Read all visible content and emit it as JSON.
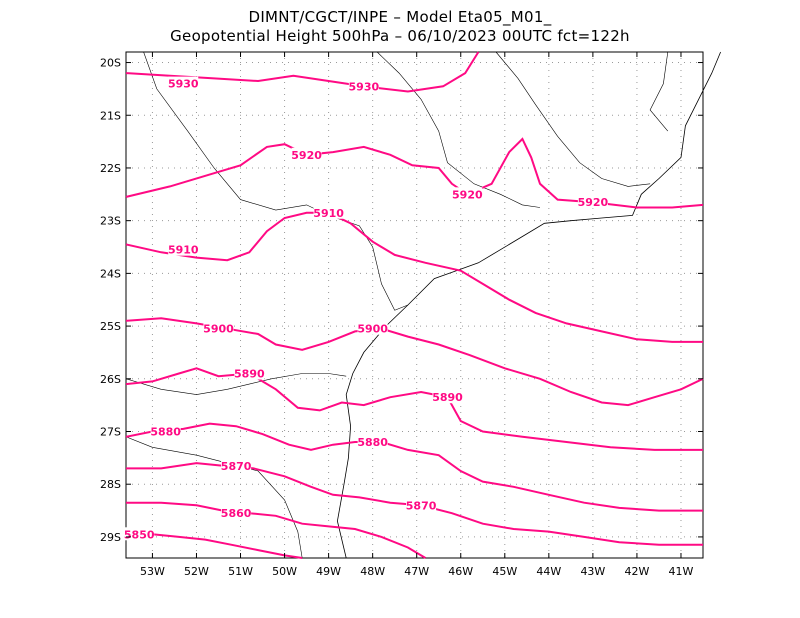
{
  "header": {
    "line1": "DIMNT/CGCT/INPE –  Model Eta05_M01_",
    "line2": "Geopotential Height 500hPa –  06/10/2023 00UTC fct=122h"
  },
  "map": {
    "lon_range": [
      -53.6,
      -40.5
    ],
    "lat_range": [
      -29.4,
      -19.8
    ],
    "lat_ticks": [
      {
        "value": -20,
        "label": "20S"
      },
      {
        "value": -21,
        "label": "21S"
      },
      {
        "value": -22,
        "label": "22S"
      },
      {
        "value": -23,
        "label": "23S"
      },
      {
        "value": -24,
        "label": "24S"
      },
      {
        "value": -25,
        "label": "25S"
      },
      {
        "value": -26,
        "label": "26S"
      },
      {
        "value": -27,
        "label": "27S"
      },
      {
        "value": -28,
        "label": "28S"
      },
      {
        "value": -29,
        "label": "29S"
      }
    ],
    "lon_ticks": [
      {
        "value": -53,
        "label": "53W"
      },
      {
        "value": -52,
        "label": "52W"
      },
      {
        "value": -51,
        "label": "51W"
      },
      {
        "value": -50,
        "label": "50W"
      },
      {
        "value": -49,
        "label": "49W"
      },
      {
        "value": -48,
        "label": "48W"
      },
      {
        "value": -47,
        "label": "47W"
      },
      {
        "value": -46,
        "label": "46W"
      },
      {
        "value": -45,
        "label": "45W"
      },
      {
        "value": -44,
        "label": "44W"
      },
      {
        "value": -43,
        "label": "43W"
      },
      {
        "value": -42,
        "label": "42W"
      },
      {
        "value": -41,
        "label": "41W"
      }
    ],
    "grid": true,
    "contour_color": "#ff0a84",
    "border_color": "#000000"
  },
  "contours": [
    {
      "value": "5930",
      "label_pos": [
        -52.3,
        -20.4
      ],
      "label2_pos": [
        -48.2,
        -20.45
      ],
      "points": [
        [
          -53.6,
          -20.2
        ],
        [
          -52.6,
          -20.25
        ],
        [
          -51.6,
          -20.3
        ],
        [
          -50.6,
          -20.35
        ],
        [
          -49.8,
          -20.25
        ],
        [
          -49.0,
          -20.35
        ],
        [
          -48.2,
          -20.45
        ],
        [
          -47.2,
          -20.55
        ],
        [
          -46.4,
          -20.45
        ],
        [
          -45.9,
          -20.2
        ],
        [
          -45.6,
          -19.8
        ]
      ]
    },
    {
      "value": "5920",
      "label_pos": [
        -49.5,
        -21.75
      ],
      "label2_pos": [
        -45.85,
        -22.5
      ],
      "label3_pos": [
        -43.0,
        -22.65
      ],
      "points": [
        [
          -53.6,
          -22.55
        ],
        [
          -52.6,
          -22.35
        ],
        [
          -51.6,
          -22.1
        ],
        [
          -51.0,
          -21.95
        ],
        [
          -50.4,
          -21.6
        ],
        [
          -50.0,
          -21.55
        ],
        [
          -49.5,
          -21.75
        ],
        [
          -48.9,
          -21.7
        ],
        [
          -48.2,
          -21.6
        ],
        [
          -47.6,
          -21.75
        ],
        [
          -47.1,
          -21.95
        ],
        [
          -46.5,
          -22.0
        ],
        [
          -46.2,
          -22.3
        ],
        [
          -45.85,
          -22.5
        ],
        [
          -45.3,
          -22.3
        ],
        [
          -44.9,
          -21.7
        ],
        [
          -44.6,
          -21.45
        ],
        [
          -44.4,
          -21.8
        ],
        [
          -44.2,
          -22.3
        ],
        [
          -43.8,
          -22.6
        ],
        [
          -43.0,
          -22.65
        ],
        [
          -42.0,
          -22.75
        ],
        [
          -41.2,
          -22.75
        ],
        [
          -40.5,
          -22.7
        ]
      ]
    },
    {
      "value": "5910",
      "label_pos": [
        -52.3,
        -23.55
      ],
      "label2_pos": [
        -49.0,
        -22.85
      ],
      "points": [
        [
          -53.6,
          -23.45
        ],
        [
          -52.8,
          -23.6
        ],
        [
          -52.0,
          -23.7
        ],
        [
          -51.3,
          -23.75
        ],
        [
          -50.8,
          -23.6
        ],
        [
          -50.4,
          -23.2
        ],
        [
          -50.0,
          -22.95
        ],
        [
          -49.5,
          -22.85
        ],
        [
          -49.0,
          -22.85
        ],
        [
          -48.5,
          -23.05
        ],
        [
          -48.0,
          -23.4
        ],
        [
          -47.5,
          -23.65
        ],
        [
          -46.8,
          -23.8
        ],
        [
          -46.0,
          -23.95
        ],
        [
          -45.5,
          -24.2
        ],
        [
          -44.9,
          -24.5
        ],
        [
          -44.3,
          -24.75
        ],
        [
          -43.6,
          -24.95
        ],
        [
          -42.8,
          -25.1
        ],
        [
          -42.0,
          -25.25
        ],
        [
          -41.2,
          -25.3
        ],
        [
          -40.5,
          -25.3
        ]
      ]
    },
    {
      "value": "5900",
      "label_pos": [
        -51.5,
        -25.05
      ],
      "label2_pos": [
        -48.0,
        -25.05
      ],
      "points": [
        [
          -53.6,
          -24.9
        ],
        [
          -52.8,
          -24.85
        ],
        [
          -52.0,
          -24.95
        ],
        [
          -51.3,
          -25.05
        ],
        [
          -50.6,
          -25.15
        ],
        [
          -50.2,
          -25.35
        ],
        [
          -49.6,
          -25.45
        ],
        [
          -49.0,
          -25.3
        ],
        [
          -48.4,
          -25.1
        ],
        [
          -47.8,
          -25.05
        ],
        [
          -47.2,
          -25.2
        ],
        [
          -46.5,
          -25.35
        ],
        [
          -45.8,
          -25.55
        ],
        [
          -45.0,
          -25.8
        ],
        [
          -44.2,
          -26.0
        ],
        [
          -43.5,
          -26.25
        ],
        [
          -42.8,
          -26.45
        ],
        [
          -42.2,
          -26.5
        ],
        [
          -41.6,
          -26.35
        ],
        [
          -41.0,
          -26.2
        ],
        [
          -40.5,
          -26.0
        ]
      ]
    },
    {
      "value": "5890",
      "label_pos": [
        -50.8,
        -25.9
      ],
      "label2_pos": [
        -46.3,
        -26.35
      ],
      "points": [
        [
          -53.6,
          -26.1
        ],
        [
          -53.0,
          -26.05
        ],
        [
          -52.4,
          -25.9
        ],
        [
          -52.0,
          -25.8
        ],
        [
          -51.5,
          -25.95
        ],
        [
          -50.8,
          -25.9
        ],
        [
          -50.2,
          -26.2
        ],
        [
          -49.7,
          -26.55
        ],
        [
          -49.2,
          -26.6
        ],
        [
          -48.7,
          -26.45
        ],
        [
          -48.2,
          -26.5
        ],
        [
          -47.6,
          -26.35
        ],
        [
          -46.9,
          -26.25
        ],
        [
          -46.3,
          -26.35
        ],
        [
          -46.0,
          -26.8
        ],
        [
          -45.5,
          -27.0
        ],
        [
          -44.6,
          -27.1
        ],
        [
          -43.6,
          -27.2
        ],
        [
          -42.6,
          -27.3
        ],
        [
          -41.6,
          -27.35
        ],
        [
          -40.5,
          -27.35
        ]
      ]
    },
    {
      "value": "5880",
      "label_pos": [
        -52.7,
        -27.0
      ],
      "label2_pos": [
        -48.0,
        -27.2
      ],
      "points": [
        [
          -53.6,
          -27.1
        ],
        [
          -53.0,
          -27.0
        ],
        [
          -52.3,
          -26.95
        ],
        [
          -51.7,
          -26.85
        ],
        [
          -51.1,
          -26.9
        ],
        [
          -50.5,
          -27.05
        ],
        [
          -49.9,
          -27.25
        ],
        [
          -49.4,
          -27.35
        ],
        [
          -48.9,
          -27.25
        ],
        [
          -48.4,
          -27.2
        ],
        [
          -47.8,
          -27.2
        ],
        [
          -47.2,
          -27.35
        ],
        [
          -46.5,
          -27.45
        ],
        [
          -46.0,
          -27.75
        ],
        [
          -45.5,
          -27.95
        ],
        [
          -44.8,
          -28.05
        ],
        [
          -44.0,
          -28.2
        ],
        [
          -43.2,
          -28.35
        ],
        [
          -42.4,
          -28.45
        ],
        [
          -41.5,
          -28.5
        ],
        [
          -40.5,
          -28.5
        ]
      ]
    },
    {
      "value": "5870",
      "label_pos": [
        -51.1,
        -27.65
      ],
      "label2_pos": [
        -46.9,
        -28.4
      ],
      "points": [
        [
          -53.6,
          -27.7
        ],
        [
          -52.8,
          -27.7
        ],
        [
          -52.0,
          -27.6
        ],
        [
          -51.4,
          -27.65
        ],
        [
          -50.7,
          -27.7
        ],
        [
          -50.0,
          -27.85
        ],
        [
          -49.4,
          -28.05
        ],
        [
          -48.9,
          -28.2
        ],
        [
          -48.3,
          -28.25
        ],
        [
          -47.6,
          -28.35
        ],
        [
          -46.9,
          -28.4
        ],
        [
          -46.2,
          -28.55
        ],
        [
          -45.5,
          -28.75
        ],
        [
          -44.8,
          -28.85
        ],
        [
          -44.0,
          -28.9
        ],
        [
          -43.2,
          -29.0
        ],
        [
          -42.4,
          -29.1
        ],
        [
          -41.5,
          -29.15
        ],
        [
          -40.5,
          -29.15
        ]
      ]
    },
    {
      "value": "5860",
      "label_pos": [
        -51.1,
        -28.55
      ],
      "points": [
        [
          -53.6,
          -28.35
        ],
        [
          -52.8,
          -28.35
        ],
        [
          -52.0,
          -28.4
        ],
        [
          -51.4,
          -28.5
        ],
        [
          -50.8,
          -28.55
        ],
        [
          -50.2,
          -28.6
        ],
        [
          -49.6,
          -28.75
        ],
        [
          -49.0,
          -28.8
        ],
        [
          -48.4,
          -28.85
        ],
        [
          -47.8,
          -29.0
        ],
        [
          -47.2,
          -29.2
        ],
        [
          -46.8,
          -29.4
        ]
      ]
    },
    {
      "value": "5850",
      "label_pos": [
        -53.3,
        -28.95
      ],
      "points": [
        [
          -53.6,
          -28.95
        ],
        [
          -53.0,
          -28.95
        ],
        [
          -52.4,
          -29.0
        ],
        [
          -51.8,
          -29.05
        ],
        [
          -51.2,
          -29.15
        ],
        [
          -50.6,
          -29.25
        ],
        [
          -50.0,
          -29.35
        ],
        [
          -49.6,
          -29.4
        ]
      ]
    }
  ],
  "coastline": [
    [
      -48.6,
      -29.4
    ],
    [
      -48.8,
      -28.7
    ],
    [
      -48.65,
      -28.0
    ],
    [
      -48.55,
      -27.5
    ],
    [
      -48.5,
      -26.9
    ],
    [
      -48.6,
      -26.3
    ],
    [
      -48.45,
      -25.9
    ],
    [
      -48.2,
      -25.5
    ],
    [
      -47.7,
      -25.0
    ],
    [
      -47.2,
      -24.6
    ],
    [
      -46.6,
      -24.1
    ],
    [
      -46.1,
      -23.95
    ],
    [
      -45.6,
      -23.8
    ],
    [
      -45.1,
      -23.55
    ],
    [
      -44.6,
      -23.3
    ],
    [
      -44.1,
      -23.05
    ],
    [
      -43.5,
      -23.0
    ],
    [
      -42.8,
      -22.95
    ],
    [
      -42.1,
      -22.9
    ],
    [
      -41.9,
      -22.5
    ],
    [
      -41.5,
      -22.2
    ],
    [
      -41.0,
      -21.8
    ],
    [
      -40.9,
      -21.2
    ],
    [
      -40.6,
      -20.7
    ],
    [
      -40.3,
      -20.2
    ],
    [
      -40.1,
      -19.8
    ]
  ],
  "state_borders": [
    [
      [
        -53.2,
        -19.8
      ],
      [
        -52.9,
        -20.5
      ],
      [
        -52.2,
        -21.3
      ],
      [
        -51.6,
        -22.0
      ],
      [
        -51.0,
        -22.6
      ],
      [
        -50.2,
        -22.8
      ],
      [
        -49.5,
        -22.7
      ],
      [
        -49.0,
        -22.9
      ],
      [
        -48.3,
        -23.1
      ],
      [
        -48.0,
        -23.5
      ],
      [
        -47.8,
        -24.2
      ],
      [
        -47.5,
        -24.7
      ],
      [
        -47.2,
        -24.6
      ]
    ],
    [
      [
        -53.6,
        -26.0
      ],
      [
        -52.8,
        -26.2
      ],
      [
        -52.0,
        -26.3
      ],
      [
        -51.3,
        -26.2
      ],
      [
        -50.8,
        -26.1
      ],
      [
        -50.3,
        -26.0
      ],
      [
        -49.6,
        -25.9
      ],
      [
        -49.0,
        -25.9
      ],
      [
        -48.6,
        -25.95
      ]
    ],
    [
      [
        -53.6,
        -27.1
      ],
      [
        -53.0,
        -27.3
      ],
      [
        -52.0,
        -27.45
      ],
      [
        -51.3,
        -27.6
      ],
      [
        -50.6,
        -27.75
      ],
      [
        -50.0,
        -28.3
      ],
      [
        -49.7,
        -28.9
      ],
      [
        -49.6,
        -29.4
      ]
    ],
    [
      [
        -47.9,
        -19.8
      ],
      [
        -47.4,
        -20.2
      ],
      [
        -46.9,
        -20.7
      ],
      [
        -46.5,
        -21.3
      ],
      [
        -46.3,
        -21.9
      ],
      [
        -45.7,
        -22.3
      ],
      [
        -45.1,
        -22.5
      ],
      [
        -44.6,
        -22.7
      ],
      [
        -44.2,
        -22.75
      ]
    ],
    [
      [
        -45.2,
        -19.8
      ],
      [
        -44.7,
        -20.3
      ],
      [
        -44.3,
        -20.8
      ],
      [
        -43.8,
        -21.4
      ],
      [
        -43.3,
        -21.9
      ],
      [
        -42.8,
        -22.2
      ],
      [
        -42.2,
        -22.35
      ],
      [
        -41.7,
        -22.3
      ]
    ],
    [
      [
        -41.3,
        -19.8
      ],
      [
        -41.4,
        -20.4
      ],
      [
        -41.7,
        -20.9
      ],
      [
        -41.3,
        -21.3
      ]
    ]
  ]
}
